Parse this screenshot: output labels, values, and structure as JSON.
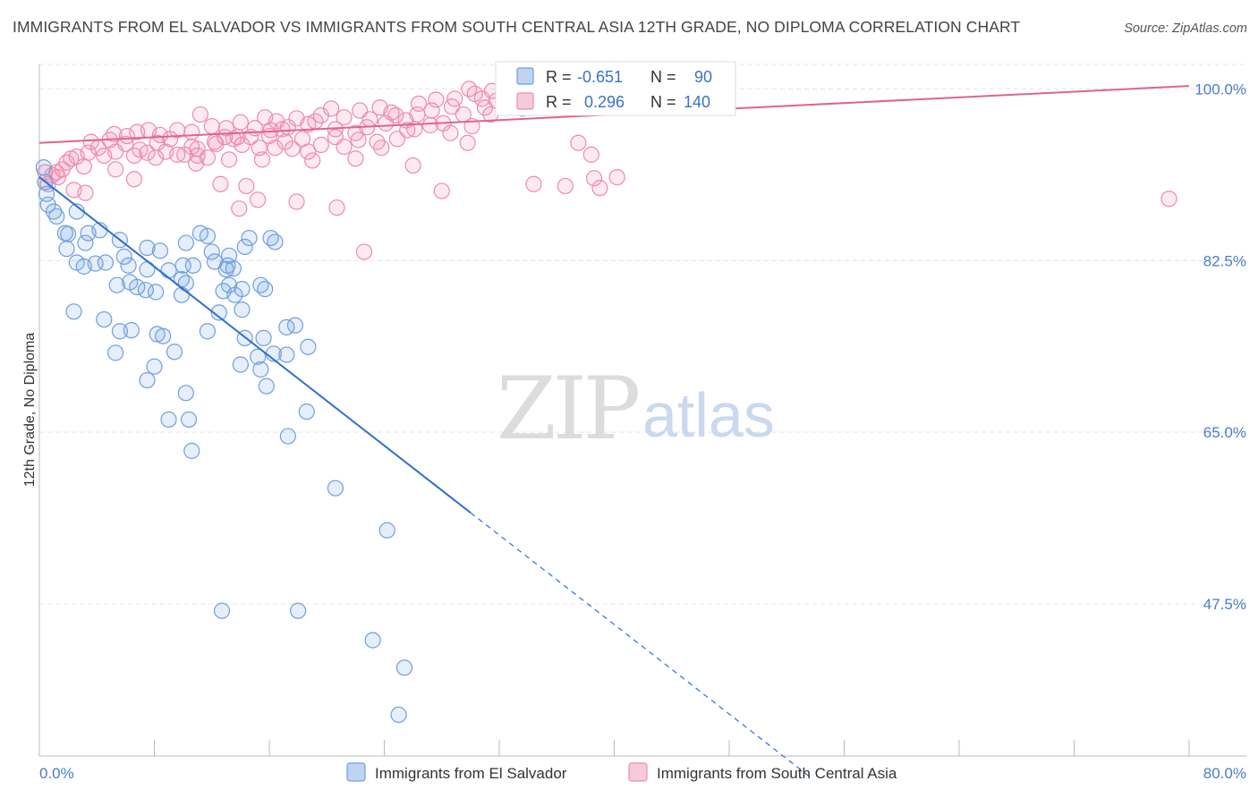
{
  "title": "IMMIGRANTS FROM EL SALVADOR VS IMMIGRANTS FROM SOUTH CENTRAL ASIA 12TH GRADE, NO DIPLOMA CORRELATION CHART",
  "source": "Source: ZipAtlas.com",
  "watermark": {
    "zip": "ZIP",
    "atlas": "atlas"
  },
  "colors": {
    "blue": "#6f9fde",
    "blue_fill": "rgba(111,159,222,0.18)",
    "blue_line": "#2f6fcf",
    "pink": "#ee8aae",
    "pink_fill": "rgba(238,138,174,0.18)",
    "pink_line": "#e06293",
    "grid": "#e4e4e4",
    "tick_label": "#4a7cc9"
  },
  "stats": {
    "blue": {
      "r_label": "R =",
      "r": "-0.651",
      "n_label": "N =",
      "n": "90"
    },
    "pink": {
      "r_label": "R =",
      "r": "0.296",
      "n_label": "N =",
      "n": "140"
    }
  },
  "chart_data": {
    "type": "scatter",
    "title": "IMMIGRANTS FROM EL SALVADOR VS IMMIGRANTS FROM SOUTH CENTRAL ASIA 12TH GRADE, NO DIPLOMA CORRELATION CHART",
    "xlabel": "",
    "ylabel": "12th Grade, No Diploma",
    "xlim": [
      0,
      80
    ],
    "ylim": [
      32,
      102.5
    ],
    "x_tick_labels": [
      "0.0%",
      "80.0%"
    ],
    "y_ticks": [
      47.5,
      65.0,
      82.5,
      100.0
    ],
    "y_tick_labels": [
      "47.5%",
      "65.0%",
      "82.5%",
      "100.0%"
    ],
    "grid": true,
    "legend_position": "bottom-center",
    "series": [
      {
        "name": "Immigrants from El Salvador",
        "color": "#6f9fde",
        "r": -0.651,
        "n": 90,
        "trend": {
          "x0": 0.0,
          "y0": 91.0,
          "x1": 30.0,
          "y1": 56.8,
          "dashed_to_x": 53.5,
          "dashed_to_y": 30.0
        },
        "points": [
          [
            0.3,
            92.0
          ],
          [
            0.4,
            90.5
          ],
          [
            0.5,
            89.3
          ],
          [
            0.6,
            88.2
          ],
          [
            1.0,
            87.5
          ],
          [
            1.2,
            87.0
          ],
          [
            2.6,
            87.5
          ],
          [
            1.8,
            85.3
          ],
          [
            2.0,
            85.2
          ],
          [
            3.4,
            85.3
          ],
          [
            4.2,
            85.6
          ],
          [
            3.2,
            84.3
          ],
          [
            5.6,
            84.6
          ],
          [
            7.5,
            83.8
          ],
          [
            1.9,
            83.7
          ],
          [
            5.9,
            82.9
          ],
          [
            8.4,
            83.5
          ],
          [
            10.2,
            84.3
          ],
          [
            11.2,
            85.3
          ],
          [
            11.7,
            85.0
          ],
          [
            12.0,
            83.4
          ],
          [
            13.2,
            83.0
          ],
          [
            14.3,
            83.9
          ],
          [
            14.6,
            84.8
          ],
          [
            16.1,
            84.8
          ],
          [
            16.4,
            84.4
          ],
          [
            2.6,
            82.3
          ],
          [
            3.1,
            81.9
          ],
          [
            3.9,
            82.2
          ],
          [
            4.6,
            82.3
          ],
          [
            6.2,
            82.0
          ],
          [
            10.0,
            82.0
          ],
          [
            10.7,
            82.0
          ],
          [
            12.2,
            82.4
          ],
          [
            13.5,
            81.7
          ],
          [
            9.9,
            80.6
          ],
          [
            10.2,
            80.2
          ],
          [
            5.4,
            80.0
          ],
          [
            6.3,
            80.3
          ],
          [
            6.8,
            79.8
          ],
          [
            7.4,
            79.5
          ],
          [
            12.8,
            79.4
          ],
          [
            13.2,
            80.0
          ],
          [
            14.1,
            79.6
          ],
          [
            9.9,
            79.0
          ],
          [
            13.6,
            79.0
          ],
          [
            13.1,
            82.0
          ],
          [
            7.5,
            81.6
          ],
          [
            15.4,
            80.0
          ],
          [
            8.1,
            79.3
          ],
          [
            2.4,
            77.3
          ],
          [
            4.5,
            76.5
          ],
          [
            5.6,
            75.3
          ],
          [
            6.4,
            75.4
          ],
          [
            8.2,
            75.0
          ],
          [
            11.7,
            75.3
          ],
          [
            12.5,
            77.2
          ],
          [
            8.6,
            74.8
          ],
          [
            14.1,
            77.5
          ],
          [
            14.3,
            74.6
          ],
          [
            15.6,
            74.6
          ],
          [
            17.2,
            75.7
          ],
          [
            17.8,
            75.9
          ],
          [
            5.3,
            73.1
          ],
          [
            9.4,
            73.2
          ],
          [
            15.2,
            72.7
          ],
          [
            16.3,
            73.0
          ],
          [
            18.7,
            73.7
          ],
          [
            17.2,
            72.9
          ],
          [
            15.4,
            71.4
          ],
          [
            14.0,
            71.9
          ],
          [
            8.0,
            71.7
          ],
          [
            10.2,
            69.0
          ],
          [
            7.5,
            70.3
          ],
          [
            15.8,
            69.7
          ],
          [
            18.6,
            67.1
          ],
          [
            9.0,
            66.3
          ],
          [
            10.4,
            66.3
          ],
          [
            17.3,
            64.6
          ],
          [
            10.6,
            63.1
          ],
          [
            15.7,
            79.6
          ],
          [
            20.6,
            59.3
          ],
          [
            24.2,
            55.0
          ],
          [
            12.7,
            46.8
          ],
          [
            18.0,
            46.8
          ],
          [
            23.2,
            43.8
          ],
          [
            25.4,
            41.0
          ],
          [
            25.0,
            36.2
          ],
          [
            13.0,
            81.6
          ],
          [
            9.0,
            81.5
          ]
        ]
      },
      {
        "name": "Immigrants from South Central Asia",
        "color": "#ee8aae",
        "r": 0.296,
        "n": 140,
        "trend": {
          "x0": 0.0,
          "y0": 94.5,
          "x1": 80.0,
          "y1": 100.3
        },
        "points": [
          [
            0.4,
            91.5
          ],
          [
            0.6,
            90.3
          ],
          [
            0.9,
            91.2
          ],
          [
            1.3,
            91.0
          ],
          [
            1.6,
            91.8
          ],
          [
            1.9,
            92.5
          ],
          [
            2.2,
            92.9
          ],
          [
            2.6,
            93.1
          ],
          [
            3.1,
            92.1
          ],
          [
            3.4,
            93.5
          ],
          [
            4.1,
            94.0
          ],
          [
            4.5,
            93.2
          ],
          [
            5.3,
            93.6
          ],
          [
            6.0,
            94.4
          ],
          [
            6.6,
            93.2
          ],
          [
            7.0,
            93.8
          ],
          [
            7.5,
            93.5
          ],
          [
            8.2,
            94.5
          ],
          [
            8.8,
            93.6
          ],
          [
            9.1,
            94.9
          ],
          [
            10.1,
            93.3
          ],
          [
            10.6,
            94.1
          ],
          [
            11.0,
            93.9
          ],
          [
            11.7,
            93.0
          ],
          [
            12.2,
            94.6
          ],
          [
            12.9,
            95.1
          ],
          [
            13.5,
            94.9
          ],
          [
            14.1,
            94.3
          ],
          [
            14.7,
            95.1
          ],
          [
            15.3,
            94.0
          ],
          [
            16.0,
            95.2
          ],
          [
            16.4,
            94.0
          ],
          [
            16.9,
            95.9
          ],
          [
            17.6,
            93.9
          ],
          [
            18.3,
            94.9
          ],
          [
            19.2,
            96.7
          ],
          [
            19.6,
            94.3
          ],
          [
            20.6,
            95.9
          ],
          [
            21.2,
            94.1
          ],
          [
            22.0,
            95.5
          ],
          [
            22.8,
            96.1
          ],
          [
            23.5,
            94.6
          ],
          [
            24.1,
            96.5
          ],
          [
            24.8,
            97.3
          ],
          [
            25.6,
            95.8
          ],
          [
            26.4,
            98.5
          ],
          [
            27.3,
            97.8
          ],
          [
            28.1,
            96.5
          ],
          [
            28.9,
            99.0
          ],
          [
            29.5,
            97.4
          ],
          [
            30.3,
            99.5
          ],
          [
            31.0,
            98.1
          ],
          [
            31.8,
            98.8
          ],
          [
            32.6,
            98.2
          ],
          [
            33.4,
            99.7
          ],
          [
            34.1,
            98.2
          ],
          [
            35.0,
            99.3
          ],
          [
            35.8,
            98.8
          ],
          [
            5.2,
            95.4
          ],
          [
            6.1,
            95.2
          ],
          [
            7.6,
            95.8
          ],
          [
            8.4,
            95.3
          ],
          [
            9.6,
            95.8
          ],
          [
            10.6,
            95.6
          ],
          [
            11.2,
            97.4
          ],
          [
            12.0,
            96.2
          ],
          [
            13.0,
            96.0
          ],
          [
            14.0,
            96.6
          ],
          [
            15.0,
            96.0
          ],
          [
            15.7,
            97.1
          ],
          [
            16.5,
            96.7
          ],
          [
            17.3,
            96.1
          ],
          [
            17.9,
            97.0
          ],
          [
            18.7,
            96.4
          ],
          [
            19.6,
            97.3
          ],
          [
            20.3,
            98.0
          ],
          [
            21.2,
            97.1
          ],
          [
            22.3,
            97.8
          ],
          [
            23.0,
            96.9
          ],
          [
            23.7,
            98.1
          ],
          [
            24.5,
            97.6
          ],
          [
            25.5,
            96.8
          ],
          [
            26.3,
            97.4
          ],
          [
            27.6,
            98.9
          ],
          [
            28.7,
            98.2
          ],
          [
            29.9,
            100.0
          ],
          [
            30.8,
            99.0
          ],
          [
            31.5,
            99.8
          ],
          [
            32.5,
            98.7
          ],
          [
            33.6,
            98.0
          ],
          [
            34.5,
            99.4
          ],
          [
            3.6,
            94.6
          ],
          [
            4.9,
            94.8
          ],
          [
            6.8,
            95.6
          ],
          [
            8.1,
            93.0
          ],
          [
            9.6,
            93.3
          ],
          [
            10.9,
            92.4
          ],
          [
            12.3,
            94.4
          ],
          [
            13.8,
            95.1
          ],
          [
            16.1,
            95.8
          ],
          [
            17.1,
            94.6
          ],
          [
            18.7,
            93.6
          ],
          [
            20.6,
            95.1
          ],
          [
            22.2,
            94.8
          ],
          [
            23.8,
            94.0
          ],
          [
            24.9,
            94.9
          ],
          [
            26.1,
            95.9
          ],
          [
            27.2,
            96.3
          ],
          [
            28.6,
            95.5
          ],
          [
            30.1,
            96.2
          ],
          [
            31.4,
            97.4
          ],
          [
            1.2,
            91.5
          ],
          [
            2.4,
            89.7
          ],
          [
            3.2,
            89.4
          ],
          [
            5.3,
            91.8
          ],
          [
            6.6,
            90.8
          ],
          [
            12.6,
            90.3
          ],
          [
            13.9,
            87.8
          ],
          [
            14.4,
            90.1
          ],
          [
            15.2,
            88.7
          ],
          [
            17.9,
            88.5
          ],
          [
            20.7,
            87.9
          ],
          [
            22.6,
            83.4
          ],
          [
            28.0,
            89.6
          ],
          [
            34.4,
            90.3
          ],
          [
            36.6,
            90.1
          ],
          [
            38.6,
            90.9
          ],
          [
            39.0,
            89.9
          ],
          [
            40.2,
            91.0
          ],
          [
            37.5,
            94.5
          ],
          [
            38.4,
            93.3
          ],
          [
            29.8,
            94.5
          ],
          [
            26.0,
            92.2
          ],
          [
            22.0,
            92.9
          ],
          [
            19.0,
            92.7
          ],
          [
            15.5,
            92.8
          ],
          [
            13.2,
            92.8
          ],
          [
            11.0,
            93.2
          ],
          [
            78.6,
            88.8
          ],
          [
            36.4,
            99.6
          ]
        ]
      }
    ]
  }
}
